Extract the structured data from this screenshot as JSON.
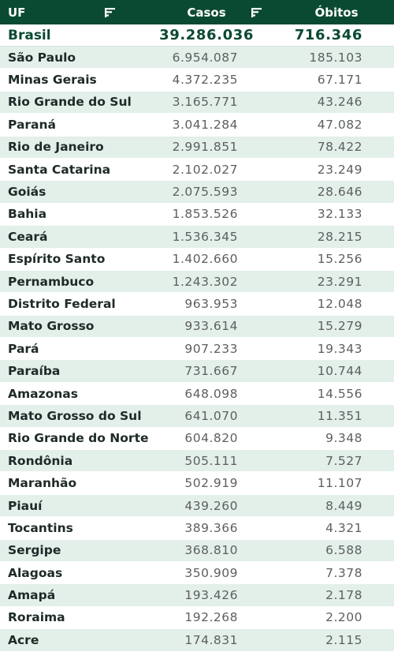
{
  "header": {
    "uf": "UF",
    "casos": "Casos",
    "obitos": "Óbitos"
  },
  "icons": {
    "sort_uf": "filter-sort-icon",
    "sort_casos": "filter-sort-icon"
  },
  "total": {
    "uf": "Brasil",
    "casos": "39.286.036",
    "obitos": "716.346"
  },
  "rows": [
    {
      "uf": "São Paulo",
      "casos": "6.954.087",
      "obitos": "185.103"
    },
    {
      "uf": "Minas Gerais",
      "casos": "4.372.235",
      "obitos": "67.171"
    },
    {
      "uf": "Rio Grande do Sul",
      "casos": "3.165.771",
      "obitos": "43.246"
    },
    {
      "uf": "Paraná",
      "casos": "3.041.284",
      "obitos": "47.082"
    },
    {
      "uf": "Rio de Janeiro",
      "casos": "2.991.851",
      "obitos": "78.422"
    },
    {
      "uf": "Santa Catarina",
      "casos": "2.102.027",
      "obitos": "23.249"
    },
    {
      "uf": "Goiás",
      "casos": "2.075.593",
      "obitos": "28.646"
    },
    {
      "uf": "Bahia",
      "casos": "1.853.526",
      "obitos": "32.133"
    },
    {
      "uf": "Ceará",
      "casos": "1.536.345",
      "obitos": "28.215"
    },
    {
      "uf": "Espírito Santo",
      "casos": "1.402.660",
      "obitos": "15.256"
    },
    {
      "uf": "Pernambuco",
      "casos": "1.243.302",
      "obitos": "23.291"
    },
    {
      "uf": "Distrito Federal",
      "casos": "963.953",
      "obitos": "12.048"
    },
    {
      "uf": "Mato Grosso",
      "casos": "933.614",
      "obitos": "15.279"
    },
    {
      "uf": "Pará",
      "casos": "907.233",
      "obitos": "19.343"
    },
    {
      "uf": "Paraíba",
      "casos": "731.667",
      "obitos": "10.744"
    },
    {
      "uf": "Amazonas",
      "casos": "648.098",
      "obitos": "14.556"
    },
    {
      "uf": "Mato Grosso do Sul",
      "casos": "641.070",
      "obitos": "11.351"
    },
    {
      "uf": "Rio Grande do Norte",
      "casos": "604.820",
      "obitos": "9.348"
    },
    {
      "uf": "Rondônia",
      "casos": "505.111",
      "obitos": "7.527"
    },
    {
      "uf": "Maranhão",
      "casos": "502.919",
      "obitos": "11.107"
    },
    {
      "uf": "Piauí",
      "casos": "439.260",
      "obitos": "8.449"
    },
    {
      "uf": "Tocantins",
      "casos": "389.366",
      "obitos": "4.321"
    },
    {
      "uf": "Sergipe",
      "casos": "368.810",
      "obitos": "6.588"
    },
    {
      "uf": "Alagoas",
      "casos": "350.909",
      "obitos": "7.378"
    },
    {
      "uf": "Amapá",
      "casos": "193.426",
      "obitos": "2.178"
    },
    {
      "uf": "Roraima",
      "casos": "192.268",
      "obitos": "2.200"
    },
    {
      "uf": "Acre",
      "casos": "174.831",
      "obitos": "2.115"
    }
  ]
}
